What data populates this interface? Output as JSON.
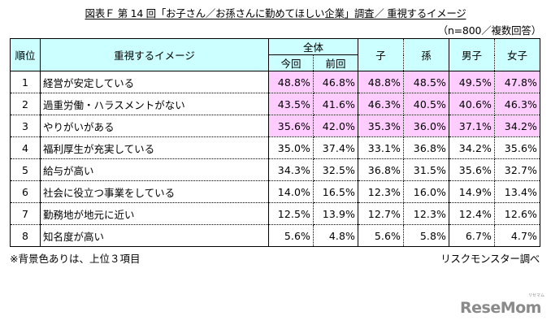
{
  "title": "図表Ｆ 第 14 回「お子さん／お孫さんに勤めてほしい企業」調査／ 重視するイメージ",
  "sample_note": "（n=800／複数回答）",
  "table": {
    "headers": {
      "rank": "順位",
      "image": "重視するイメージ",
      "overall": "全体",
      "current": "今回",
      "previous": "前回",
      "child": "子",
      "grandchild": "孫",
      "male": "男子",
      "female": "女子"
    },
    "rows": [
      {
        "rank": "1",
        "label": "経営が安定している",
        "current": "48.8%",
        "previous": "46.8%",
        "child": "48.8%",
        "grandchild": "48.5%",
        "male": "49.5%",
        "female": "47.8%",
        "top3": true
      },
      {
        "rank": "2",
        "label": "過重労働・ハラスメントがない",
        "current": "43.5%",
        "previous": "41.6%",
        "child": "46.3%",
        "grandchild": "40.5%",
        "male": "40.6%",
        "female": "46.3%",
        "top3": true
      },
      {
        "rank": "3",
        "label": "やりがいがある",
        "current": "35.6%",
        "previous": "42.0%",
        "child": "35.3%",
        "grandchild": "36.0%",
        "male": "37.1%",
        "female": "34.2%",
        "top3": true
      },
      {
        "rank": "4",
        "label": "福利厚生が充実している",
        "current": "35.0%",
        "previous": "37.4%",
        "child": "33.1%",
        "grandchild": "36.8%",
        "male": "34.2%",
        "female": "35.6%",
        "top3": false
      },
      {
        "rank": "5",
        "label": "給与が高い",
        "current": "34.3%",
        "previous": "32.5%",
        "child": "36.8%",
        "grandchild": "31.5%",
        "male": "35.6%",
        "female": "32.7%",
        "top3": false
      },
      {
        "rank": "6",
        "label": "社会に役立つ事業をしている",
        "current": "14.0%",
        "previous": "16.5%",
        "child": "12.3%",
        "grandchild": "16.0%",
        "male": "14.9%",
        "female": "13.4%",
        "top3": false
      },
      {
        "rank": "7",
        "label": "勤務地が地元に近い",
        "current": "12.5%",
        "previous": "13.9%",
        "child": "12.7%",
        "grandchild": "12.3%",
        "male": "12.4%",
        "female": "12.6%",
        "top3": false
      },
      {
        "rank": "8",
        "label": "知名度が高い",
        "current": "5.6%",
        "previous": "4.8%",
        "child": "5.6%",
        "grandchild": "5.8%",
        "male": "6.7%",
        "female": "4.7%",
        "top3": false
      }
    ]
  },
  "footnote": "※背景色ありは、上位３項目",
  "source": "リスクモンスター調べ",
  "logo": {
    "text": "ReseMom",
    "tagline": "リセマム"
  },
  "colors": {
    "header_bg": "#ccffff",
    "top3_bg": "#ffccff"
  }
}
